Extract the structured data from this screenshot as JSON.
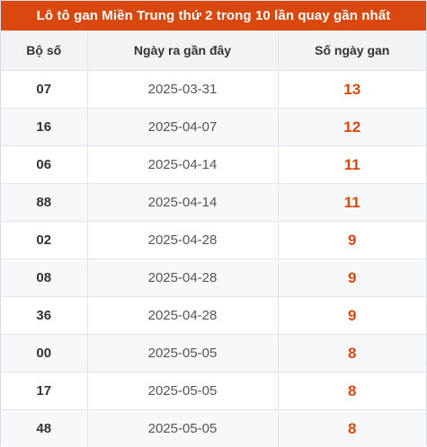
{
  "title": "Lô tô gan Miền Trung thứ 2 trong 10 lần quay gần nhất",
  "columns": [
    "Bộ số",
    "Ngày ra gần đây",
    "Số ngày gan"
  ],
  "rows": [
    {
      "number": "07",
      "date": "2025-03-31",
      "days": "13"
    },
    {
      "number": "16",
      "date": "2025-04-07",
      "days": "12"
    },
    {
      "number": "06",
      "date": "2025-04-14",
      "days": "11"
    },
    {
      "number": "88",
      "date": "2025-04-14",
      "days": "11"
    },
    {
      "number": "02",
      "date": "2025-04-28",
      "days": "9"
    },
    {
      "number": "08",
      "date": "2025-04-28",
      "days": "9"
    },
    {
      "number": "36",
      "date": "2025-04-28",
      "days": "9"
    },
    {
      "number": "00",
      "date": "2025-05-05",
      "days": "8"
    },
    {
      "number": "17",
      "date": "2025-05-05",
      "days": "8"
    },
    {
      "number": "48",
      "date": "2025-05-05",
      "days": "8"
    }
  ],
  "colors": {
    "header_bg": "#d9480f",
    "accent_text": "#d9480f",
    "column_header_bg": "#f2f3f5",
    "stripe_bg": "#f7f8fa"
  }
}
